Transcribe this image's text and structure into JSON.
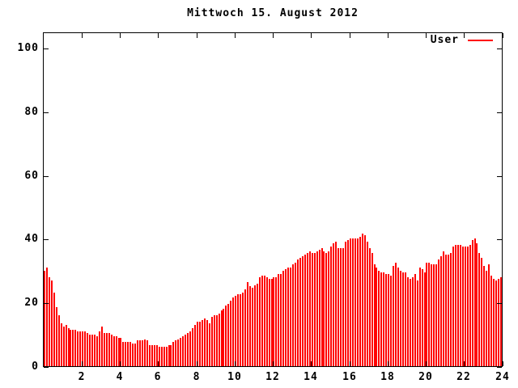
{
  "title": "Mittwoch 15. August 2012",
  "legend": {
    "label": "User"
  },
  "colors": {
    "bar": "#ff0000",
    "axis": "#000000",
    "background": "#ffffff"
  },
  "chart_data": {
    "type": "bar",
    "title": "Mittwoch 15. August 2012",
    "series_name": "User",
    "xlabel": "",
    "ylabel": "",
    "x_unit": "hour of day",
    "x_range": [
      0,
      24
    ],
    "y_range": [
      0,
      105
    ],
    "x_ticks": [
      2,
      4,
      6,
      8,
      10,
      12,
      14,
      16,
      18,
      20,
      22,
      24
    ],
    "y_ticks": [
      0,
      20,
      40,
      60,
      80,
      100
    ],
    "grid": false,
    "legend_position": "top-right-inside",
    "bar_color": "#ff0000",
    "interval_hours": 0.125,
    "values": [
      30,
      31,
      28,
      27,
      23,
      18.5,
      16,
      13.5,
      12.5,
      13,
      12,
      11.5,
      11.5,
      11.5,
      11,
      11,
      11,
      11,
      10.5,
      10,
      10,
      10,
      9.5,
      11,
      12.5,
      10.5,
      10.5,
      10.5,
      10,
      9.5,
      9.5,
      9,
      9,
      7.5,
      7.5,
      7.5,
      7.5,
      7,
      7,
      8,
      8,
      8,
      8.5,
      8,
      6.5,
      6.5,
      6.5,
      6.5,
      6,
      6,
      6,
      6,
      6.5,
      6.5,
      7.5,
      8,
      8.5,
      9,
      9.5,
      10,
      10.5,
      11,
      12,
      13,
      14,
      14,
      14.5,
      15,
      14.5,
      13.5,
      15.5,
      16,
      16,
      16.5,
      17.5,
      18,
      19,
      19.5,
      20.5,
      21.5,
      22,
      22.5,
      22.5,
      23,
      24,
      26.5,
      25,
      24.5,
      25.5,
      26,
      28,
      28.5,
      28.5,
      28,
      27.5,
      27.5,
      28,
      28,
      29,
      29,
      30,
      30.5,
      31,
      31,
      32,
      32.5,
      33.5,
      34,
      34.5,
      35,
      35.5,
      36,
      35.5,
      35.5,
      36,
      36.5,
      37,
      36,
      35.5,
      36,
      37.5,
      38.5,
      39,
      37,
      37,
      37,
      39,
      39.5,
      40,
      40,
      40,
      40,
      40.5,
      41.5,
      41,
      39,
      37,
      35.5,
      32,
      31,
      30,
      29.5,
      29.5,
      29,
      29,
      28.5,
      31.5,
      32.5,
      31,
      30,
      29.5,
      29.5,
      28,
      27.5,
      28,
      29,
      27,
      31,
      30.5,
      29.5,
      32.5,
      32.5,
      32,
      32,
      32,
      33.5,
      34.5,
      36,
      35,
      35,
      35.5,
      37.5,
      38,
      38,
      38,
      37.5,
      37.5,
      37.5,
      38,
      39.5,
      40,
      38.5,
      35.5,
      34,
      31.5,
      30,
      32,
      28.5,
      27.5,
      27,
      27.5,
      28
    ]
  }
}
